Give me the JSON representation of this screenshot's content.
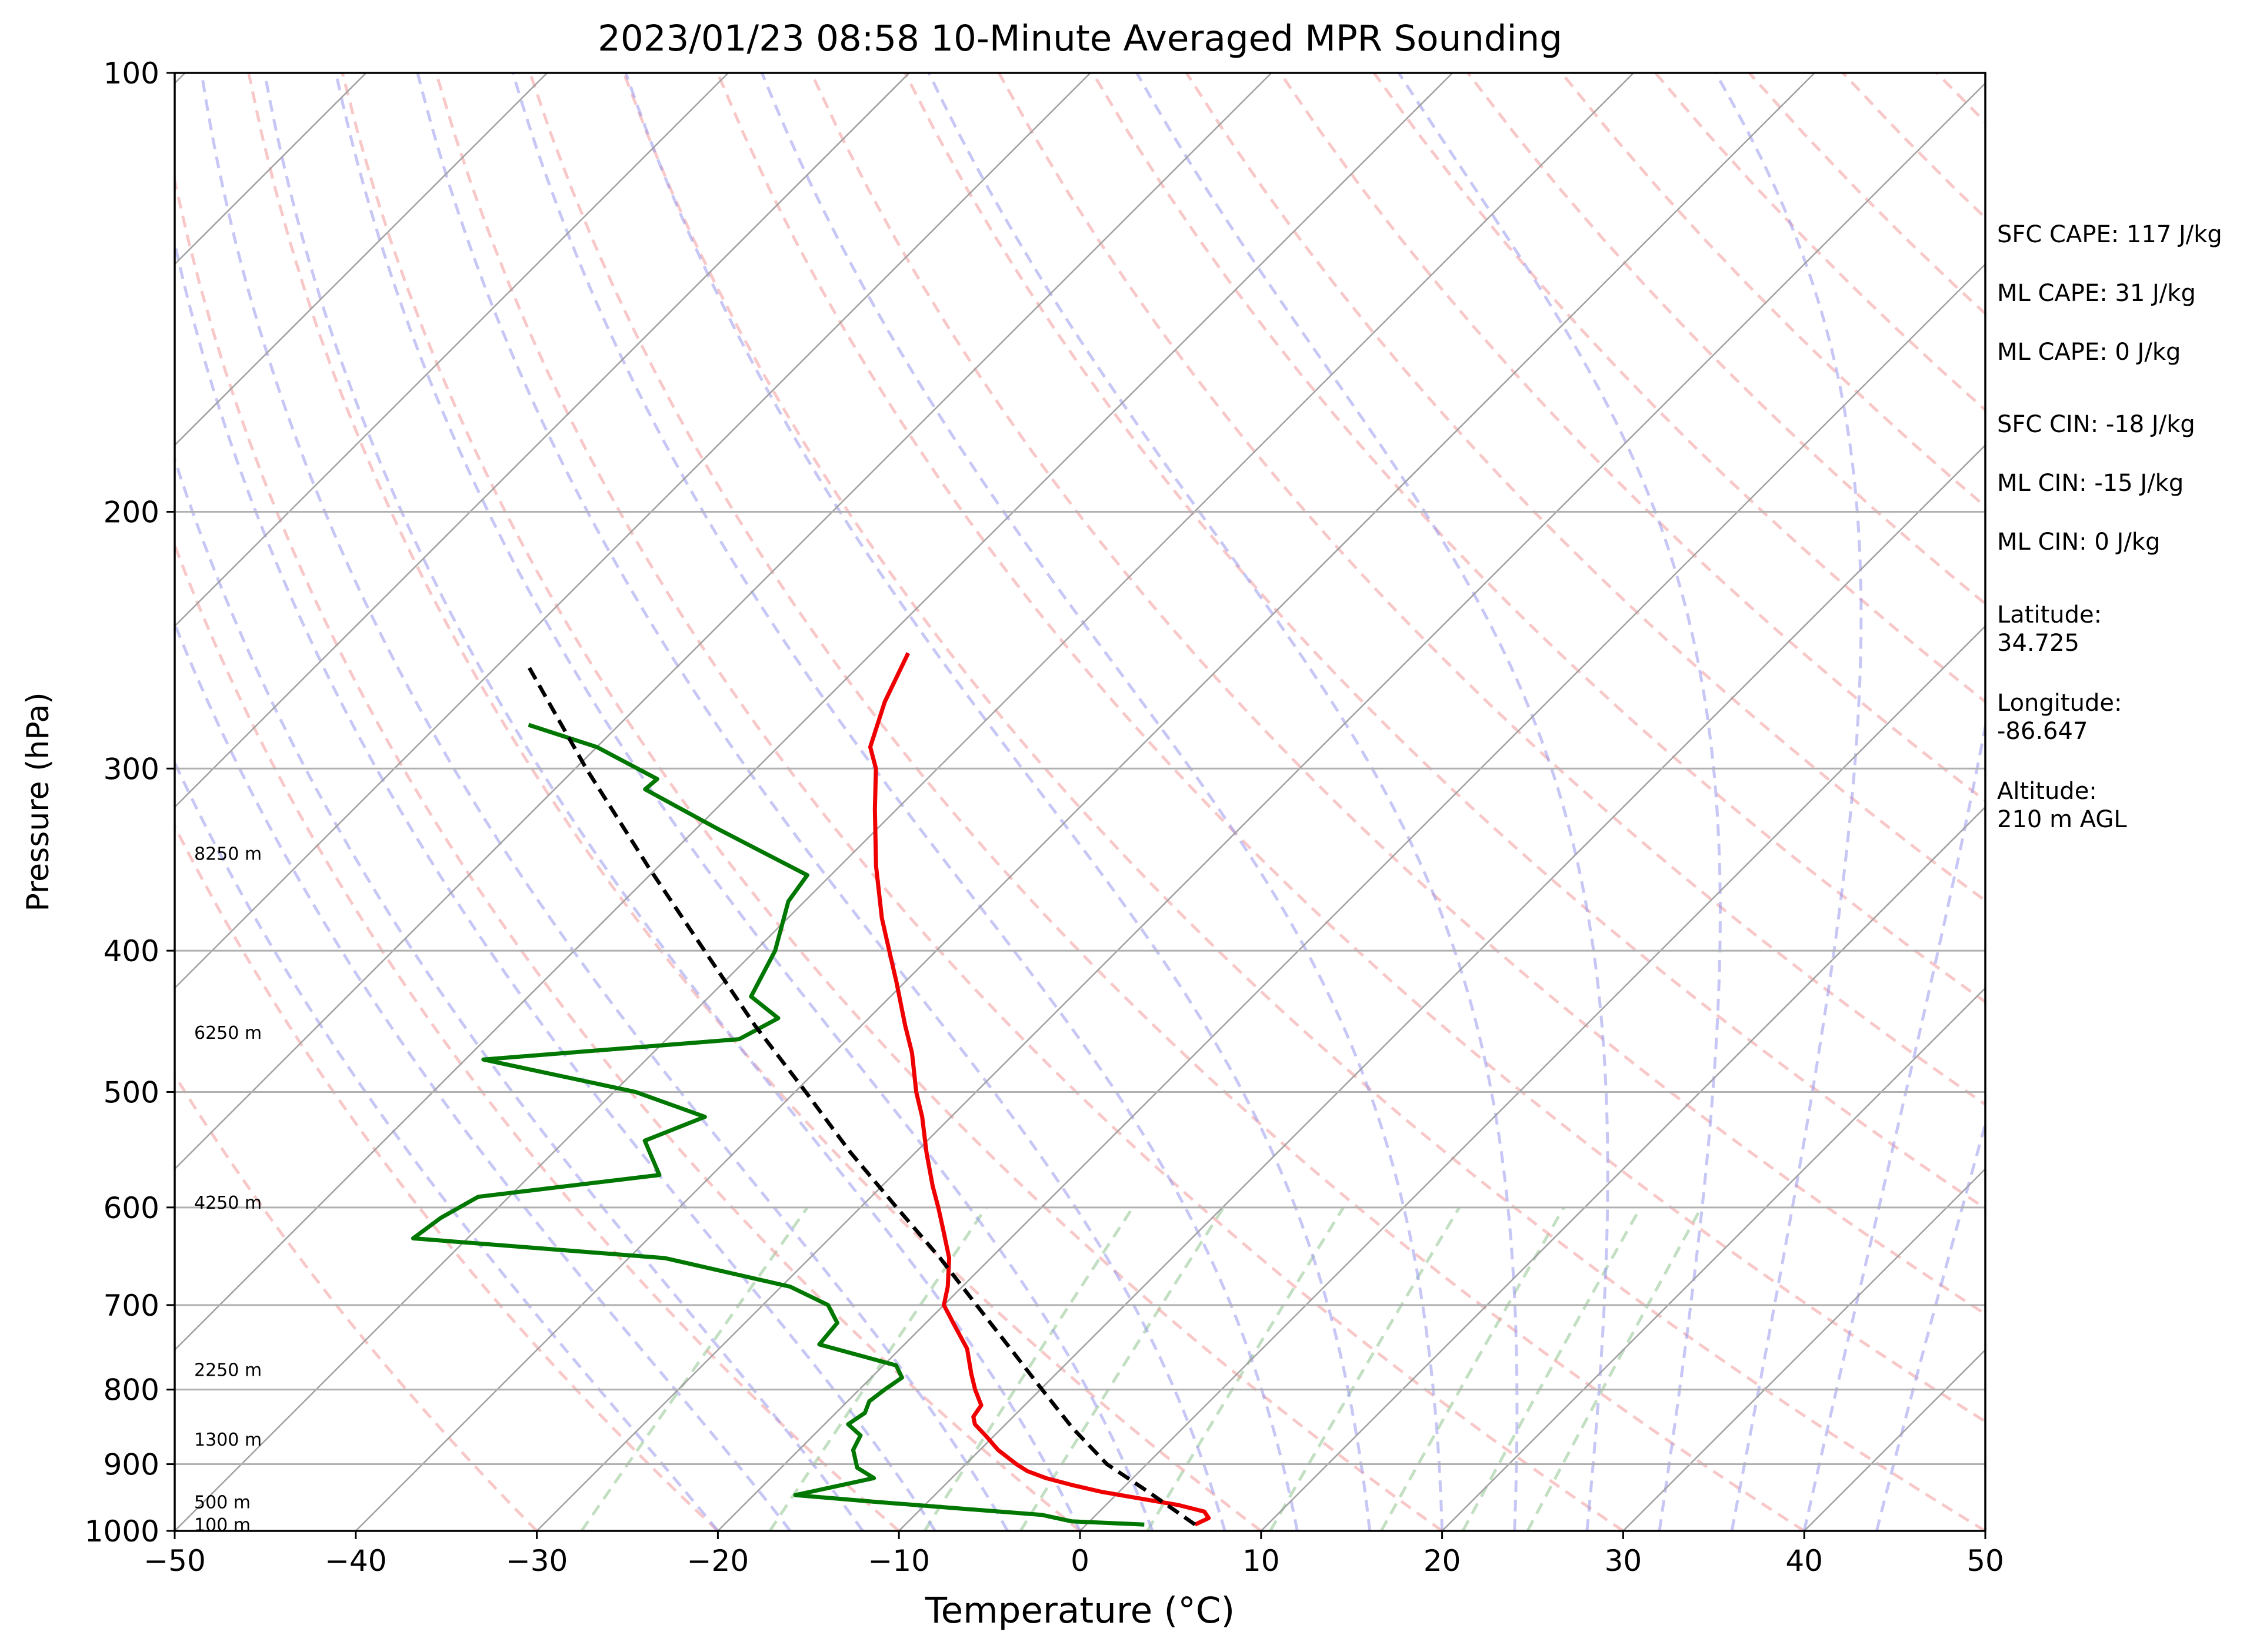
{
  "chart_data": {
    "type": "line",
    "title": "2023/01/23 08:58 10-Minute Averaged MPR Sounding",
    "xlabel": "Temperature (°C)",
    "ylabel": "Pressure (hPa)",
    "x_scale": "skew-T (45° skew)",
    "y_scale": "log",
    "xlim": [
      -50,
      50
    ],
    "ylim": [
      1000,
      100
    ],
    "x_ticks": [
      "−50",
      "−40",
      "−30",
      "−20",
      "−10",
      "0",
      "10",
      "20",
      "30",
      "40",
      "50"
    ],
    "y_ticks": [
      "100",
      "200",
      "300",
      "400",
      "500",
      "600",
      "700",
      "800",
      "900",
      "1000"
    ],
    "grid": true,
    "background_lines": {
      "isotherms_color": "#a0a0a0",
      "dry_adiabats_color": "#f4a3a3",
      "moist_adiabats_color": "#9999ee",
      "mixing_ratio_color": "#8fc48f"
    },
    "height_labels": [
      {
        "text": "100 m",
        "p": 990
      },
      {
        "text": "500 m",
        "p": 955
      },
      {
        "text": "1300 m",
        "p": 865
      },
      {
        "text": "2250 m",
        "p": 775
      },
      {
        "text": "4250 m",
        "p": 595
      },
      {
        "text": "6250 m",
        "p": 455
      },
      {
        "text": "8250 m",
        "p": 343
      }
    ],
    "series": [
      {
        "role": "temperature",
        "color": "#ee0000",
        "points": [
          {
            "p": 990,
            "t": 6.0
          },
          {
            "p": 980,
            "t": 6.4
          },
          {
            "p": 970,
            "t": 5.8
          },
          {
            "p": 960,
            "t": 4.0
          },
          {
            "p": 950,
            "t": 1.5
          },
          {
            "p": 940,
            "t": -1.0
          },
          {
            "p": 930,
            "t": -3.0
          },
          {
            "p": 920,
            "t": -4.8
          },
          {
            "p": 910,
            "t": -6.2
          },
          {
            "p": 900,
            "t": -7.2
          },
          {
            "p": 880,
            "t": -9.0
          },
          {
            "p": 860,
            "t": -10.5
          },
          {
            "p": 845,
            "t": -11.7
          },
          {
            "p": 835,
            "t": -12.2
          },
          {
            "p": 820,
            "t": -12.4
          },
          {
            "p": 800,
            "t": -13.6
          },
          {
            "p": 780,
            "t": -14.7
          },
          {
            "p": 750,
            "t": -16.3
          },
          {
            "p": 720,
            "t": -18.5
          },
          {
            "p": 700,
            "t": -20.0
          },
          {
            "p": 680,
            "t": -20.8
          },
          {
            "p": 650,
            "t": -22.3
          },
          {
            "p": 620,
            "t": -24.3
          },
          {
            "p": 600,
            "t": -25.7
          },
          {
            "p": 580,
            "t": -27.2
          },
          {
            "p": 550,
            "t": -29.4
          },
          {
            "p": 520,
            "t": -31.6
          },
          {
            "p": 500,
            "t": -33.3
          },
          {
            "p": 470,
            "t": -35.7
          },
          {
            "p": 450,
            "t": -37.6
          },
          {
            "p": 420,
            "t": -40.5
          },
          {
            "p": 400,
            "t": -42.6
          },
          {
            "p": 380,
            "t": -44.8
          },
          {
            "p": 350,
            "t": -48.0
          },
          {
            "p": 320,
            "t": -51.2
          },
          {
            "p": 300,
            "t": -53.4
          },
          {
            "p": 290,
            "t": -54.9
          },
          {
            "p": 270,
            "t": -56.6
          },
          {
            "p": 250,
            "t": -58.0
          }
        ]
      },
      {
        "role": "dewpoint",
        "color": "#007700",
        "points": [
          {
            "p": 990,
            "t": 3.2
          },
          {
            "p": 985,
            "t": -1.0
          },
          {
            "p": 975,
            "t": -3.0
          },
          {
            "p": 965,
            "t": -8.0
          },
          {
            "p": 955,
            "t": -13.0
          },
          {
            "p": 945,
            "t": -17.7
          },
          {
            "p": 920,
            "t": -14.3
          },
          {
            "p": 905,
            "t": -15.8
          },
          {
            "p": 880,
            "t": -17.0
          },
          {
            "p": 860,
            "t": -17.4
          },
          {
            "p": 845,
            "t": -18.7
          },
          {
            "p": 830,
            "t": -18.4
          },
          {
            "p": 815,
            "t": -18.8
          },
          {
            "p": 800,
            "t": -18.6
          },
          {
            "p": 785,
            "t": -18.3
          },
          {
            "p": 770,
            "t": -19.3
          },
          {
            "p": 745,
            "t": -24.7
          },
          {
            "p": 720,
            "t": -24.9
          },
          {
            "p": 700,
            "t": -26.4
          },
          {
            "p": 680,
            "t": -29.5
          },
          {
            "p": 650,
            "t": -38.0
          },
          {
            "p": 630,
            "t": -53.0
          },
          {
            "p": 610,
            "t": -52.6
          },
          {
            "p": 590,
            "t": -51.7
          },
          {
            "p": 570,
            "t": -42.9
          },
          {
            "p": 540,
            "t": -45.6
          },
          {
            "p": 520,
            "t": -43.6
          },
          {
            "p": 500,
            "t": -48.8
          },
          {
            "p": 475,
            "t": -59.0
          },
          {
            "p": 460,
            "t": -46.0
          },
          {
            "p": 445,
            "t": -45.0
          },
          {
            "p": 430,
            "t": -47.7
          },
          {
            "p": 400,
            "t": -48.9
          },
          {
            "p": 370,
            "t": -50.9
          },
          {
            "p": 355,
            "t": -51.3
          },
          {
            "p": 330,
            "t": -58.8
          },
          {
            "p": 310,
            "t": -65.0
          },
          {
            "p": 305,
            "t": -64.9
          },
          {
            "p": 290,
            "t": -70.0
          },
          {
            "p": 280,
            "t": -75.0
          }
        ]
      },
      {
        "role": "parcel",
        "color": "#000000",
        "style": "dashed",
        "points": [
          {
            "p": 990,
            "t": 6.0
          },
          {
            "p": 940,
            "t": 1.6
          },
          {
            "p": 900,
            "t": -2.2
          },
          {
            "p": 850,
            "t": -6.1
          },
          {
            "p": 800,
            "t": -9.9
          },
          {
            "p": 750,
            "t": -13.9
          },
          {
            "p": 700,
            "t": -18.2
          },
          {
            "p": 650,
            "t": -22.8
          },
          {
            "p": 600,
            "t": -28.0
          },
          {
            "p": 550,
            "t": -33.6
          },
          {
            "p": 500,
            "t": -39.4
          },
          {
            "p": 450,
            "t": -45.9
          },
          {
            "p": 400,
            "t": -52.8
          },
          {
            "p": 350,
            "t": -60.6
          },
          {
            "p": 300,
            "t": -69.4
          },
          {
            "p": 255,
            "t": -78.3
          }
        ]
      }
    ]
  },
  "stats": [
    "SFC CAPE: 117 J/kg",
    "ML CAPE: 31 J/kg",
    "ML CAPE: 0 J/kg",
    "SFC CIN: -18 J/kg",
    "ML CIN: -15 J/kg",
    "ML CIN: 0 J/kg"
  ],
  "location": {
    "latitude_label": "Latitude:",
    "latitude_value": "34.725",
    "longitude_label": "Longitude:",
    "longitude_value": "-86.647",
    "altitude_label": "Altitude:",
    "altitude_value": "210 m AGL"
  }
}
